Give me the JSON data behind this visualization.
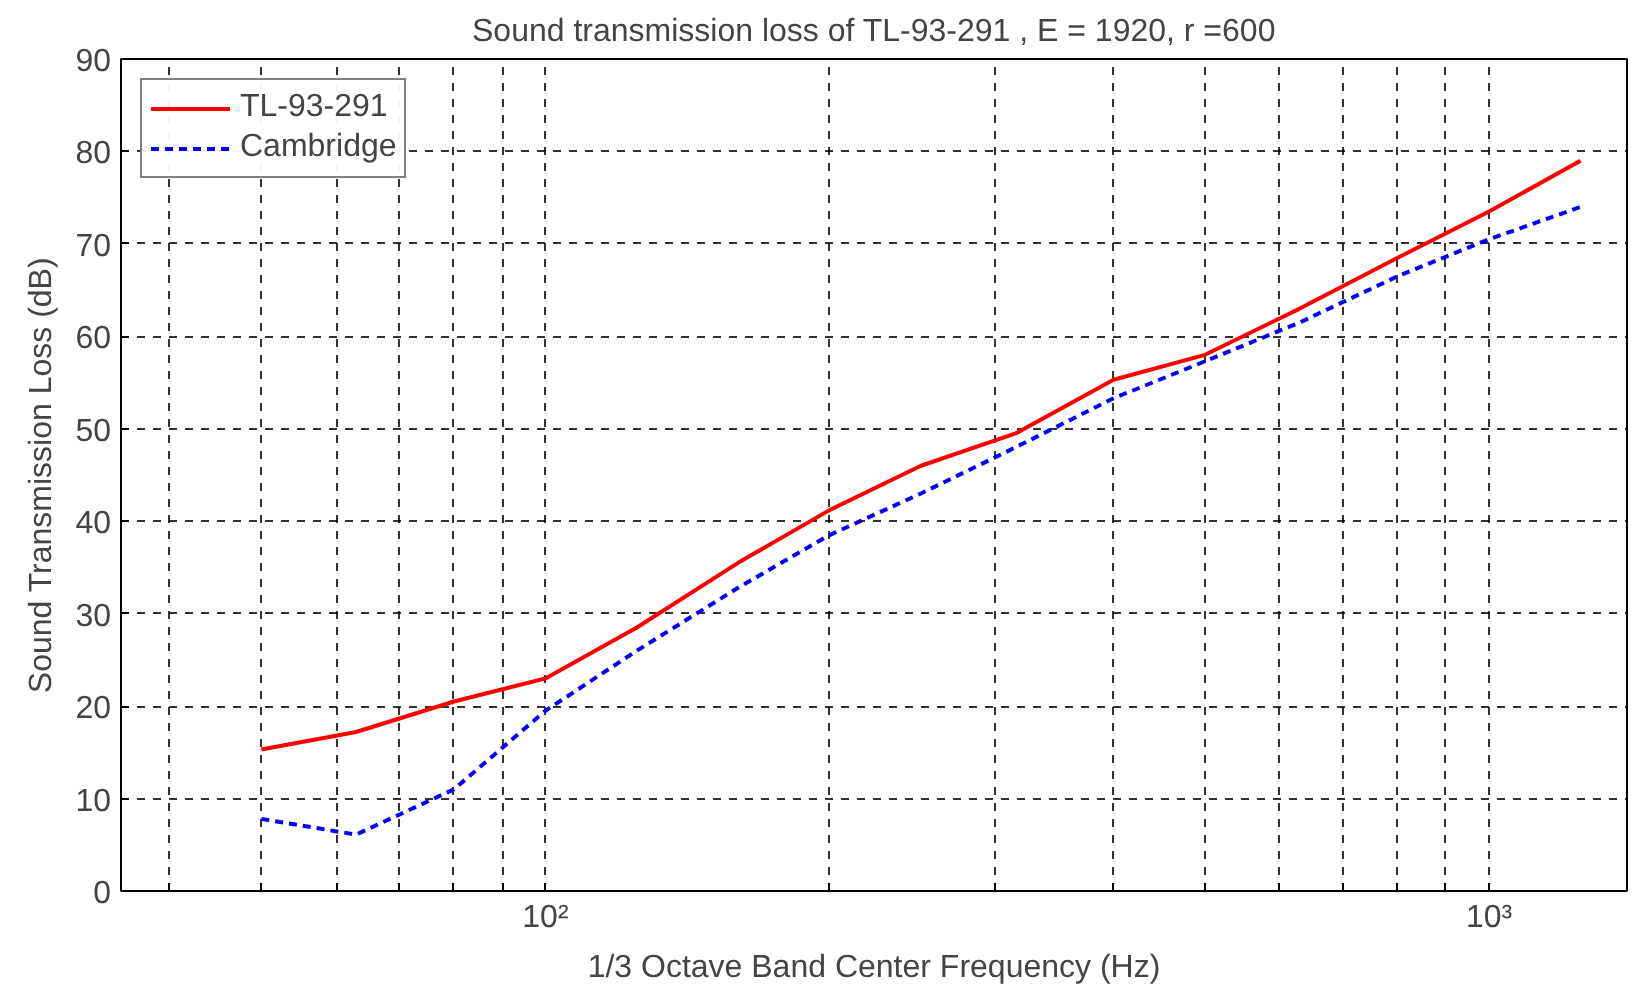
{
  "chart_data": {
    "type": "line",
    "title": "Sound transmission loss of TL-93-291 , E = 1920, r =600",
    "xlabel": "1/3 Octave Band Center Frequency (Hz)",
    "ylabel": "Sound Transmission Loss (dB)",
    "x": [
      50,
      63,
      80,
      100,
      125,
      160,
      200,
      250,
      315,
      400,
      500,
      630,
      800,
      1000,
      1250
    ],
    "series": [
      {
        "name": "TL-93-291",
        "color": "#ff0000",
        "line_style": "solid",
        "values": [
          15.3,
          17.2,
          20.5,
          23,
          28.5,
          35.5,
          41.2,
          46,
          49.5,
          55.3,
          58,
          63,
          68.5,
          73.5,
          79
        ]
      },
      {
        "name": "Cambridge",
        "color": "#0000ff",
        "line_style": "dashed",
        "values": [
          7.8,
          6.1,
          11,
          19.5,
          26,
          32.8,
          38.5,
          43,
          48,
          53.3,
          57.3,
          61.5,
          66.5,
          70.5,
          74
        ]
      }
    ],
    "log": "x",
    "xlim": [
      35.5,
      1400
    ],
    "ylim": [
      0,
      90
    ],
    "xticks": [
      {
        "value": 40,
        "label": null
      },
      {
        "value": 50,
        "label": null
      },
      {
        "value": 60,
        "label": null
      },
      {
        "value": 70,
        "label": null
      },
      {
        "value": 80,
        "label": null
      },
      {
        "value": 90,
        "label": null
      },
      {
        "value": 100,
        "label": "10²"
      },
      {
        "value": 200,
        "label": null
      },
      {
        "value": 300,
        "label": null
      },
      {
        "value": 400,
        "label": null
      },
      {
        "value": 500,
        "label": null
      },
      {
        "value": 600,
        "label": null
      },
      {
        "value": 700,
        "label": null
      },
      {
        "value": 800,
        "label": null
      },
      {
        "value": 900,
        "label": null
      },
      {
        "value": 1000,
        "label": "10³"
      }
    ],
    "yticks": [
      0,
      10,
      20,
      30,
      40,
      50,
      60,
      70,
      80,
      90
    ],
    "grid": true,
    "legend": "top left",
    "marker": "none"
  }
}
